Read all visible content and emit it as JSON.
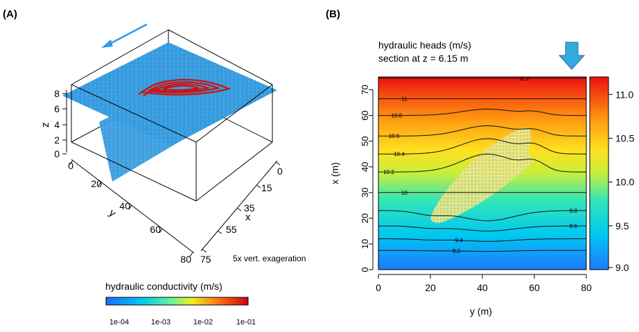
{
  "panel_a": {
    "label": "(A)",
    "axis_z": "z",
    "axis_y": "y",
    "axis_x": "x",
    "z_ticks": [
      "8",
      "6",
      "4",
      "2",
      "0"
    ],
    "y_ticks": [
      "0",
      "20",
      "40",
      "60",
      "80"
    ],
    "x_ticks": [
      "0",
      "15",
      "35",
      "55",
      "75"
    ],
    "note": "5x vert. exageration",
    "colorbar_title": "hydraulic conductivity (m/s)",
    "colorbar_ticks": [
      "1e-04",
      "1e-03",
      "1e-02",
      "1e-01"
    ],
    "flow_arrow_color": "#3399ee",
    "slice_color": "#3a9ee0",
    "plume_color": "#cc1111"
  },
  "panel_b": {
    "label": "(B)",
    "title_line1": "hydraulic heads (m/s)",
    "title_line2": "section at z = 6.15 m",
    "arrow_color": "#33aadd",
    "plume_color": "#d8d86a"
  },
  "chart_data": [
    {
      "type": "heatmap",
      "panel": "B",
      "xlabel": "y (m)",
      "ylabel": "x (m)",
      "xlim": [
        0,
        80
      ],
      "ylim": [
        0,
        75
      ],
      "x_ticks": [
        0,
        20,
        40,
        60,
        80
      ],
      "y_ticks": [
        0,
        10,
        20,
        30,
        40,
        50,
        60,
        70
      ],
      "colorbar_range": [
        9.0,
        11.2
      ],
      "colorbar_ticks": [
        9.0,
        9.5,
        10.0,
        10.5,
        11.0
      ],
      "colorbar_tick_labels": [
        "9.0",
        "9.5",
        "10.0",
        "10.5",
        "11.0"
      ],
      "contours": [
        {
          "level": 9.2,
          "label": "9.2"
        },
        {
          "level": 9.4,
          "label": "9.4"
        },
        {
          "level": 9.6,
          "label": "9.6"
        },
        {
          "level": 9.8,
          "label": "9.8"
        },
        {
          "level": 10.0,
          "label": "10"
        },
        {
          "level": 10.2,
          "label": "10.2"
        },
        {
          "level": 10.4,
          "label": "10.4"
        },
        {
          "level": 10.6,
          "label": "10.6"
        },
        {
          "level": 10.8,
          "label": "10.8"
        },
        {
          "level": 11.0,
          "label": "11"
        },
        {
          "level": 11.2,
          "label": "11.2"
        }
      ]
    },
    {
      "type": "scatter",
      "panel": "A",
      "colorbar_ticks": [
        "1e-04",
        "1e-03",
        "1e-02",
        "1e-01"
      ]
    }
  ]
}
